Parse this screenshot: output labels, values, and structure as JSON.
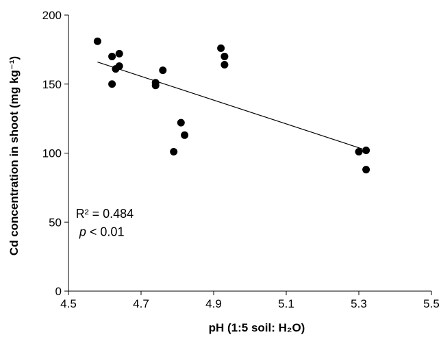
{
  "chart_data": {
    "type": "scatter",
    "xlabel": "pH (1:5 soil: H₂O)",
    "ylabel": "Cd concentration in shoot (mg kg⁻¹)",
    "xlim": [
      4.5,
      5.5
    ],
    "ylim": [
      0,
      200
    ],
    "x_ticks": [
      "4.5",
      "4.7",
      "4.9",
      "5.1",
      "5.3",
      "5.5"
    ],
    "y_ticks": [
      "0",
      "50",
      "100",
      "150",
      "200"
    ],
    "grid": false,
    "legend": "none",
    "marker_color": "#000000",
    "points": [
      {
        "x": 4.58,
        "y": 181
      },
      {
        "x": 4.62,
        "y": 170
      },
      {
        "x": 4.62,
        "y": 150
      },
      {
        "x": 4.63,
        "y": 161
      },
      {
        "x": 4.64,
        "y": 172
      },
      {
        "x": 4.64,
        "y": 163
      },
      {
        "x": 4.74,
        "y": 149
      },
      {
        "x": 4.74,
        "y": 151
      },
      {
        "x": 4.76,
        "y": 160
      },
      {
        "x": 4.79,
        "y": 101
      },
      {
        "x": 4.81,
        "y": 122
      },
      {
        "x": 4.82,
        "y": 113
      },
      {
        "x": 4.92,
        "y": 176
      },
      {
        "x": 4.93,
        "y": 170
      },
      {
        "x": 4.93,
        "y": 164
      },
      {
        "x": 5.3,
        "y": 101
      },
      {
        "x": 5.32,
        "y": 102
      },
      {
        "x": 5.32,
        "y": 88
      }
    ],
    "trendline": {
      "x": [
        4.58,
        5.31
      ],
      "y": [
        166,
        103
      ]
    },
    "annotations": {
      "r2": "R² = 0.484",
      "p_symbol": "p",
      "p_rest": " < 0.01"
    }
  }
}
